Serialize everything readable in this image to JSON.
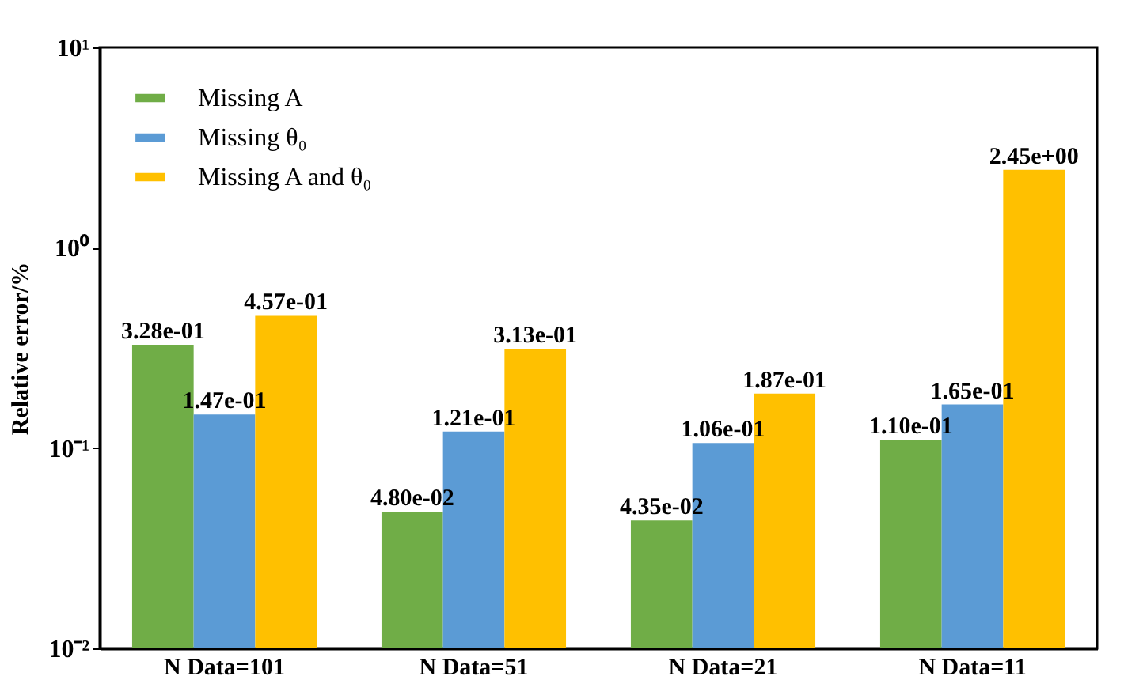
{
  "chart_data": {
    "type": "bar",
    "ylabel": "Relative error/%",
    "categories": [
      "N  Data=101",
      "N  Data=51",
      "N  Data=21",
      "N  Data=11"
    ],
    "series": [
      {
        "name": "Missing A",
        "color": "#70ad47",
        "values": [
          0.328,
          0.048,
          0.0435,
          0.11
        ],
        "value_labels": [
          "3.28e-01",
          "4.80e-02",
          "4.35e-02",
          "1.10e-01"
        ]
      },
      {
        "name": "Missing θ₀",
        "color": "#5b9bd5",
        "values": [
          0.147,
          0.121,
          0.106,
          0.165
        ],
        "value_labels": [
          "1.47e-01",
          "1.21e-01",
          "1.06e-01",
          "1.65e-01"
        ]
      },
      {
        "name": "Missing A and θ₀",
        "color": "#ffc000",
        "values": [
          0.457,
          0.313,
          0.187,
          2.45
        ],
        "value_labels": [
          "4.57e-01",
          "3.13e-01",
          "1.87e-01",
          "2.45e+00"
        ]
      }
    ],
    "log": "y",
    "ylim": [
      0.01,
      10
    ],
    "yticks": [
      {
        "value": 0.01,
        "label": "10⁻²"
      },
      {
        "value": 0.1,
        "label": "10⁻¹"
      },
      {
        "value": 1,
        "label": "10⁰"
      },
      {
        "value": 10,
        "label": "10¹"
      }
    ],
    "grid": false,
    "legend": "top left"
  }
}
